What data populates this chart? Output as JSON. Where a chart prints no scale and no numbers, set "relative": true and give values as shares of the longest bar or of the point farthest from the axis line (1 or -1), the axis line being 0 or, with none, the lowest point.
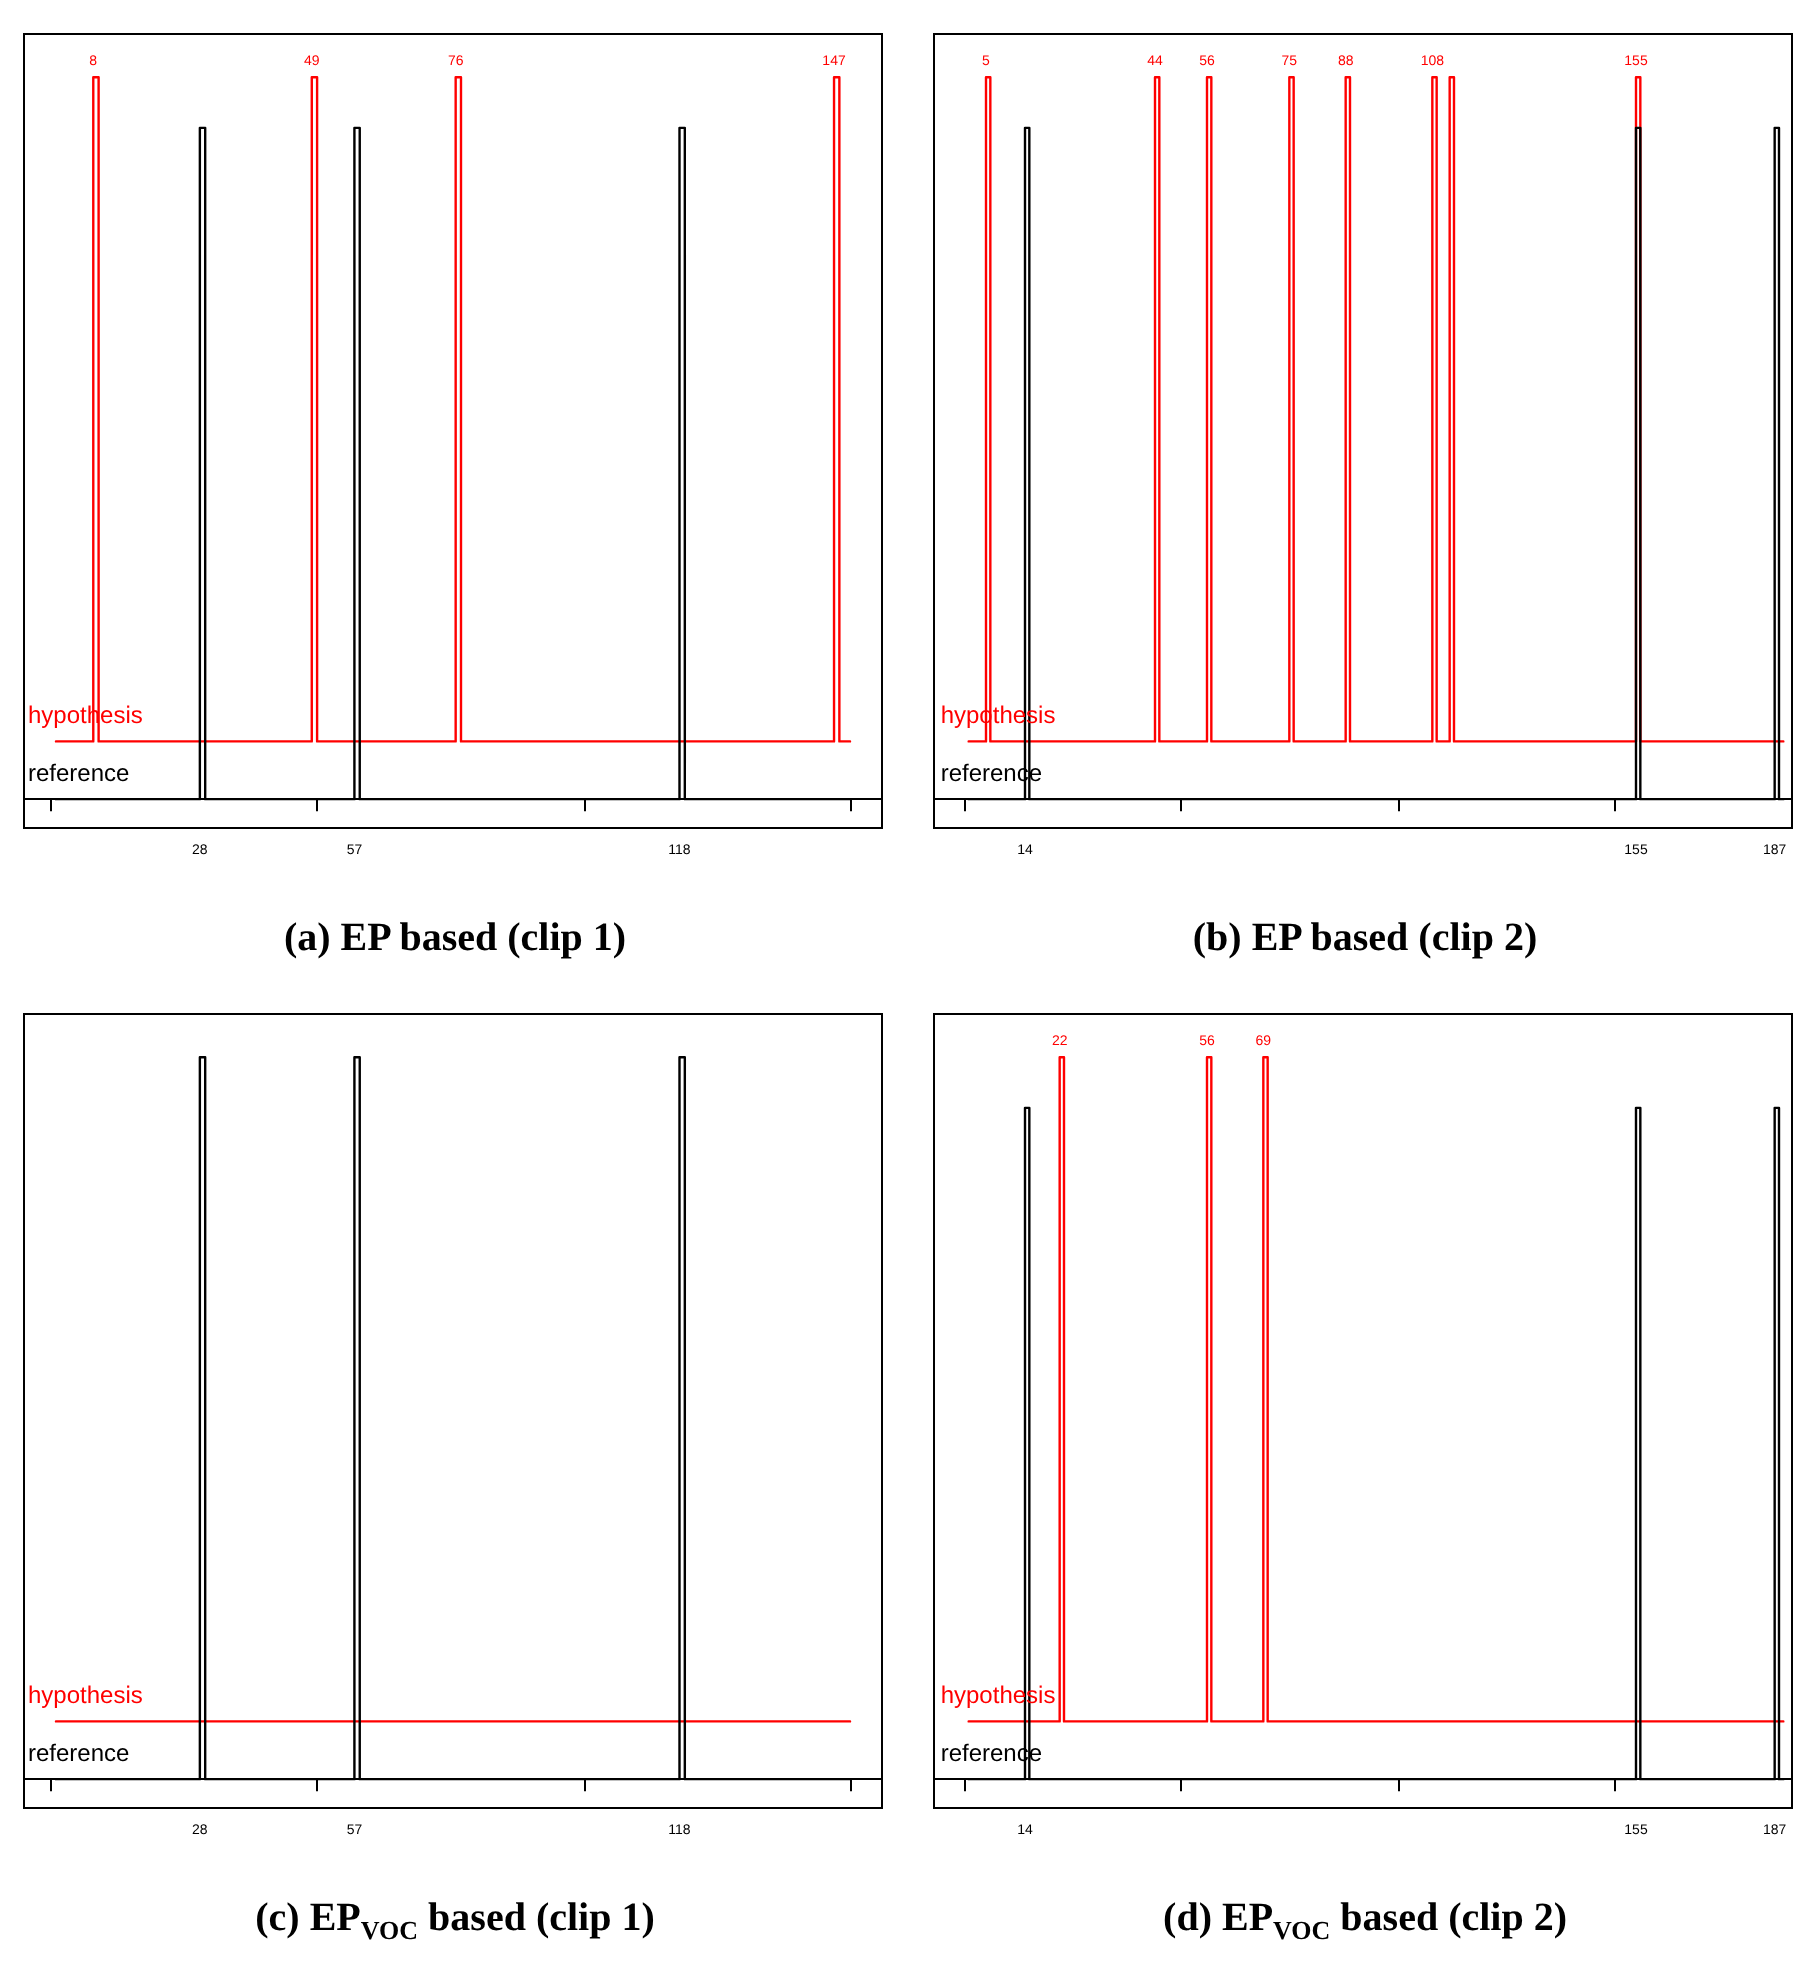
{
  "chart_data": [
    {
      "type": "line",
      "title": "(a) EP based (clip 1)",
      "relative": true,
      "legend": false,
      "grid": false,
      "marker": "none",
      "line_style": "solid",
      "xlim": [
        -5,
        156
      ],
      "xticks": [
        {
          "value": 0,
          "label": null
        },
        {
          "value": 50,
          "label": null
        },
        {
          "value": 100,
          "label": null
        },
        {
          "value": 150,
          "label": null
        },
        28,
        57,
        118
      ],
      "series": [
        {
          "name": "hypothesis",
          "color": "#ff0000",
          "x": [
            1,
            8,
            8,
            9,
            9,
            49,
            49,
            50,
            50,
            76,
            76,
            77,
            77,
            147,
            147,
            148,
            148,
            150
          ],
          "values": [
            0.08,
            0.08,
            1,
            1,
            0.08,
            0.08,
            1,
            1,
            0.08,
            0.08,
            1,
            1,
            0.08,
            0.08,
            1,
            1,
            0.08,
            0.08
          ]
        },
        {
          "name": "reference",
          "color": "#000000",
          "x": [
            1,
            28,
            28,
            29,
            29,
            57,
            57,
            58,
            58,
            118,
            118,
            119,
            119,
            150
          ],
          "values": [
            0,
            0,
            0.93,
            0.93,
            0,
            0,
            0.93,
            0.93,
            0,
            0,
            0.93,
            0.93,
            0,
            0
          ]
        }
      ],
      "annotations": [
        {
          "text": "8",
          "x": 8,
          "y": 1
        },
        {
          "text": "49",
          "x": 49,
          "y": 1
        },
        {
          "text": "76",
          "x": 76,
          "y": 1
        },
        {
          "text": "147",
          "x": 147,
          "y": 1
        }
      ]
    },
    {
      "type": "line",
      "title": "(b) EP based (clip 2)",
      "relative": true,
      "legend": false,
      "grid": false,
      "marker": "none",
      "line_style": "solid",
      "xlim": [
        -7,
        191
      ],
      "xticks": [
        {
          "value": 0,
          "label": null
        },
        {
          "value": 50,
          "label": null
        },
        {
          "value": 100,
          "label": null
        },
        {
          "value": 150,
          "label": null
        },
        14,
        155,
        187
      ],
      "series": [
        {
          "name": "hypothesis",
          "color": "#ff0000",
          "x": [
            1,
            5,
            5,
            6,
            6,
            44,
            44,
            45,
            45,
            56,
            56,
            57,
            57,
            75,
            75,
            76,
            76,
            88,
            88,
            89,
            89,
            108,
            108,
            109,
            109,
            112,
            112,
            113,
            113,
            155,
            155,
            156,
            156,
            189
          ],
          "values": [
            0.08,
            0.08,
            1,
            1,
            0.08,
            0.08,
            1,
            1,
            0.08,
            0.08,
            1,
            1,
            0.08,
            0.08,
            1,
            1,
            0.08,
            0.08,
            1,
            1,
            0.08,
            0.08,
            1,
            1,
            0.08,
            0.08,
            1,
            1,
            0.08,
            0.08,
            1,
            1,
            0.08,
            0.08
          ]
        },
        {
          "name": "reference",
          "color": "#000000",
          "x": [
            1,
            14,
            14,
            15,
            15,
            155,
            155,
            156,
            156,
            187,
            187,
            188,
            188,
            189
          ],
          "values": [
            0,
            0,
            0.93,
            0.93,
            0,
            0,
            0.93,
            0.93,
            0,
            0,
            0.93,
            0.93,
            0,
            0
          ]
        }
      ],
      "annotations": [
        {
          "text": "5",
          "x": 5,
          "y": 1
        },
        {
          "text": "44",
          "x": 44,
          "y": 1
        },
        {
          "text": "56",
          "x": 56,
          "y": 1
        },
        {
          "text": "75",
          "x": 75,
          "y": 1
        },
        {
          "text": "88",
          "x": 88,
          "y": 1
        },
        {
          "text": "108",
          "x": 108,
          "y": 1
        },
        {
          "text": "155",
          "x": 155,
          "y": 1
        }
      ]
    },
    {
      "type": "line",
      "title": "(c) EP$_{VOC}$ based (clip 1)",
      "relative": true,
      "legend": false,
      "grid": false,
      "marker": "none",
      "line_style": "solid",
      "xlim": [
        -5,
        156
      ],
      "xticks": [
        {
          "value": 0,
          "label": null
        },
        {
          "value": 50,
          "label": null
        },
        {
          "value": 100,
          "label": null
        },
        {
          "value": 150,
          "label": null
        },
        28,
        57,
        118
      ],
      "series": [
        {
          "name": "hypothesis",
          "color": "#ff0000",
          "x": [
            1,
            150
          ],
          "values": [
            0.08,
            0.08
          ]
        },
        {
          "name": "reference",
          "color": "#000000",
          "x": [
            1,
            28,
            28,
            29,
            29,
            57,
            57,
            58,
            58,
            118,
            118,
            119,
            119,
            150
          ],
          "values": [
            0,
            0,
            1,
            1,
            0,
            0,
            1,
            1,
            0,
            0,
            1,
            1,
            0,
            0
          ]
        }
      ]
    },
    {
      "type": "line",
      "title": "(d) EP$_{VOC}$ based (clip 2)",
      "relative": true,
      "legend": false,
      "grid": false,
      "marker": "none",
      "line_style": "solid",
      "xlim": [
        -7,
        191
      ],
      "xticks": [
        {
          "value": 0,
          "label": null
        },
        {
          "value": 50,
          "label": null
        },
        {
          "value": 100,
          "label": null
        },
        {
          "value": 150,
          "label": null
        },
        14,
        155,
        187
      ],
      "series": [
        {
          "name": "hypothesis",
          "color": "#ff0000",
          "x": [
            1,
            22,
            22,
            23,
            23,
            56,
            56,
            57,
            57,
            69,
            69,
            70,
            70,
            189
          ],
          "values": [
            0.08,
            0.08,
            1,
            1,
            0.08,
            0.08,
            1,
            1,
            0.08,
            0.08,
            1,
            1,
            0.08,
            0.08
          ]
        },
        {
          "name": "reference",
          "color": "#000000",
          "x": [
            1,
            14,
            14,
            15,
            15,
            155,
            155,
            156,
            156,
            187,
            187,
            188,
            188,
            189
          ],
          "values": [
            0,
            0,
            0.93,
            0.93,
            0,
            0,
            0.93,
            0.93,
            0,
            0,
            0.93,
            0.93,
            0,
            0
          ]
        }
      ],
      "annotations": [
        {
          "text": "22",
          "x": 22,
          "y": 1
        },
        {
          "text": "56",
          "x": 56,
          "y": 1
        },
        {
          "text": "69",
          "x": 69,
          "y": 1
        }
      ]
    }
  ]
}
